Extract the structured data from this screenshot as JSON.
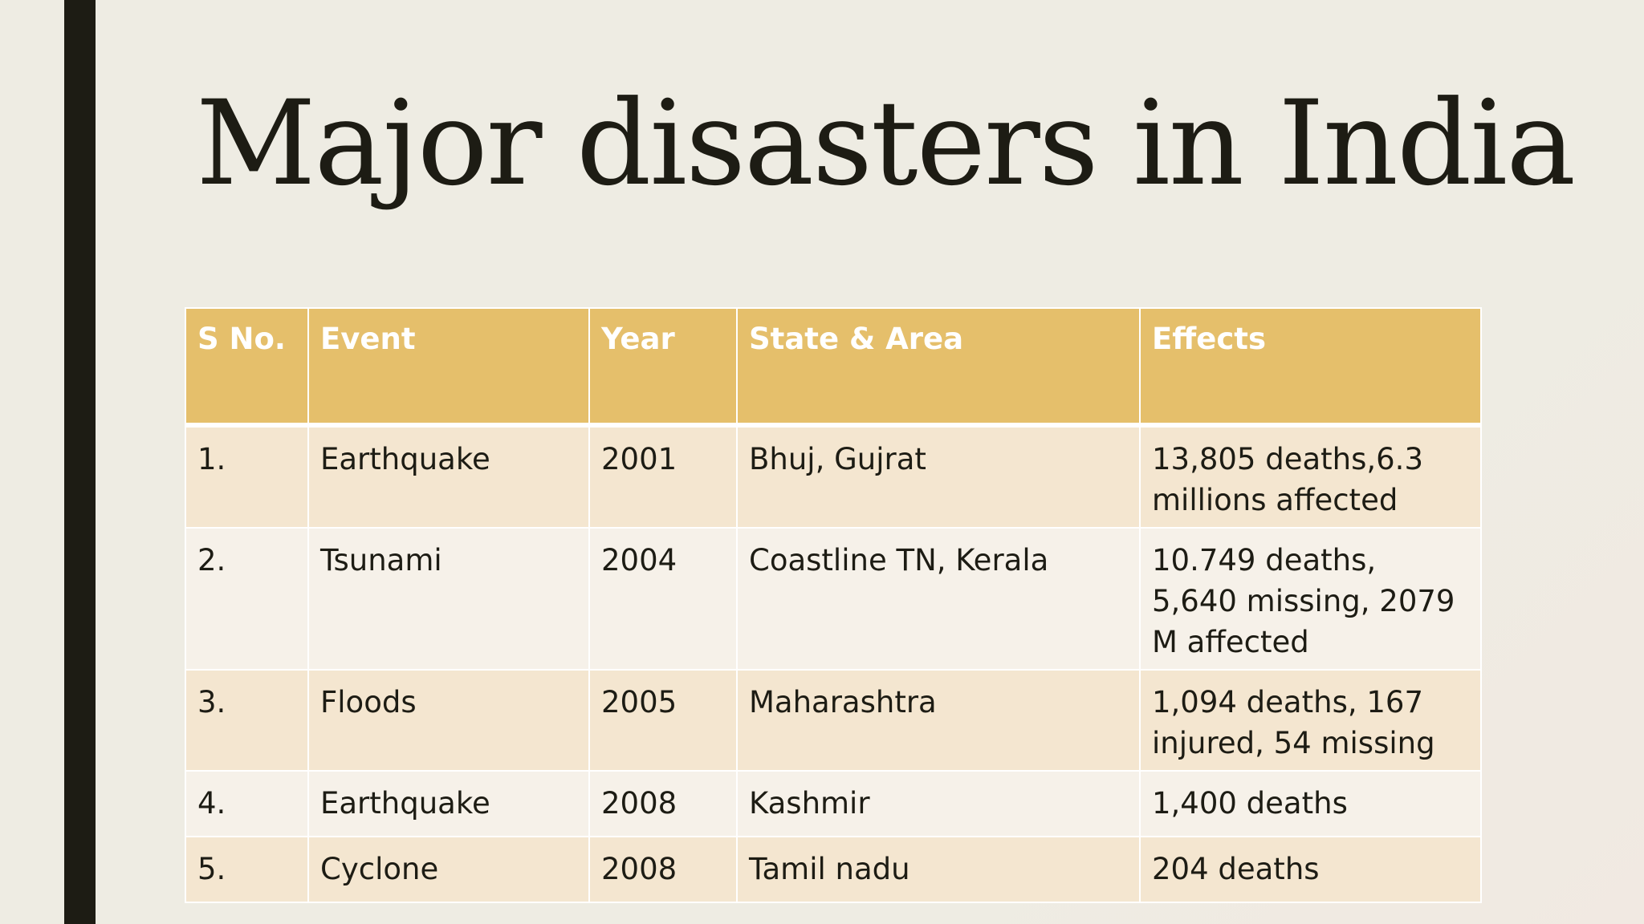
{
  "slide": {
    "title": "Major disasters in India"
  },
  "table": {
    "headers": [
      "S No.",
      "Event",
      "Year",
      "State & Area",
      "Effects"
    ],
    "rows": [
      {
        "sno": "1.",
        "event": "Earthquake",
        "year": "2001",
        "area": "Bhuj, Gujrat",
        "effects": "13,805 deaths,6.3 millions affected"
      },
      {
        "sno": "2.",
        "event": "Tsunami",
        "year": "2004",
        "area": "Coastline TN, Kerala",
        "effects": "10.749 deaths, 5,640 missing, 2079 M affected"
      },
      {
        "sno": "3.",
        "event": "Floods",
        "year": "2005",
        "area": "Maharashtra",
        "effects": "1,094 deaths, 167 injured, 54 missing"
      },
      {
        "sno": "4.",
        "event": "Earthquake",
        "year": "2008",
        "area": "Kashmir",
        "effects": "1,400 deaths"
      },
      {
        "sno": "5.",
        "event": "Cyclone",
        "year": "2008",
        "area": "Tamil nadu",
        "effects": "204 deaths"
      }
    ]
  },
  "colors": {
    "header_fill": "#e5bf6b",
    "row_band_1": "#f4e6d0",
    "row_band_2": "#f6f1e9",
    "accent_bar": "#1d1c14",
    "background": "#eeece3"
  }
}
